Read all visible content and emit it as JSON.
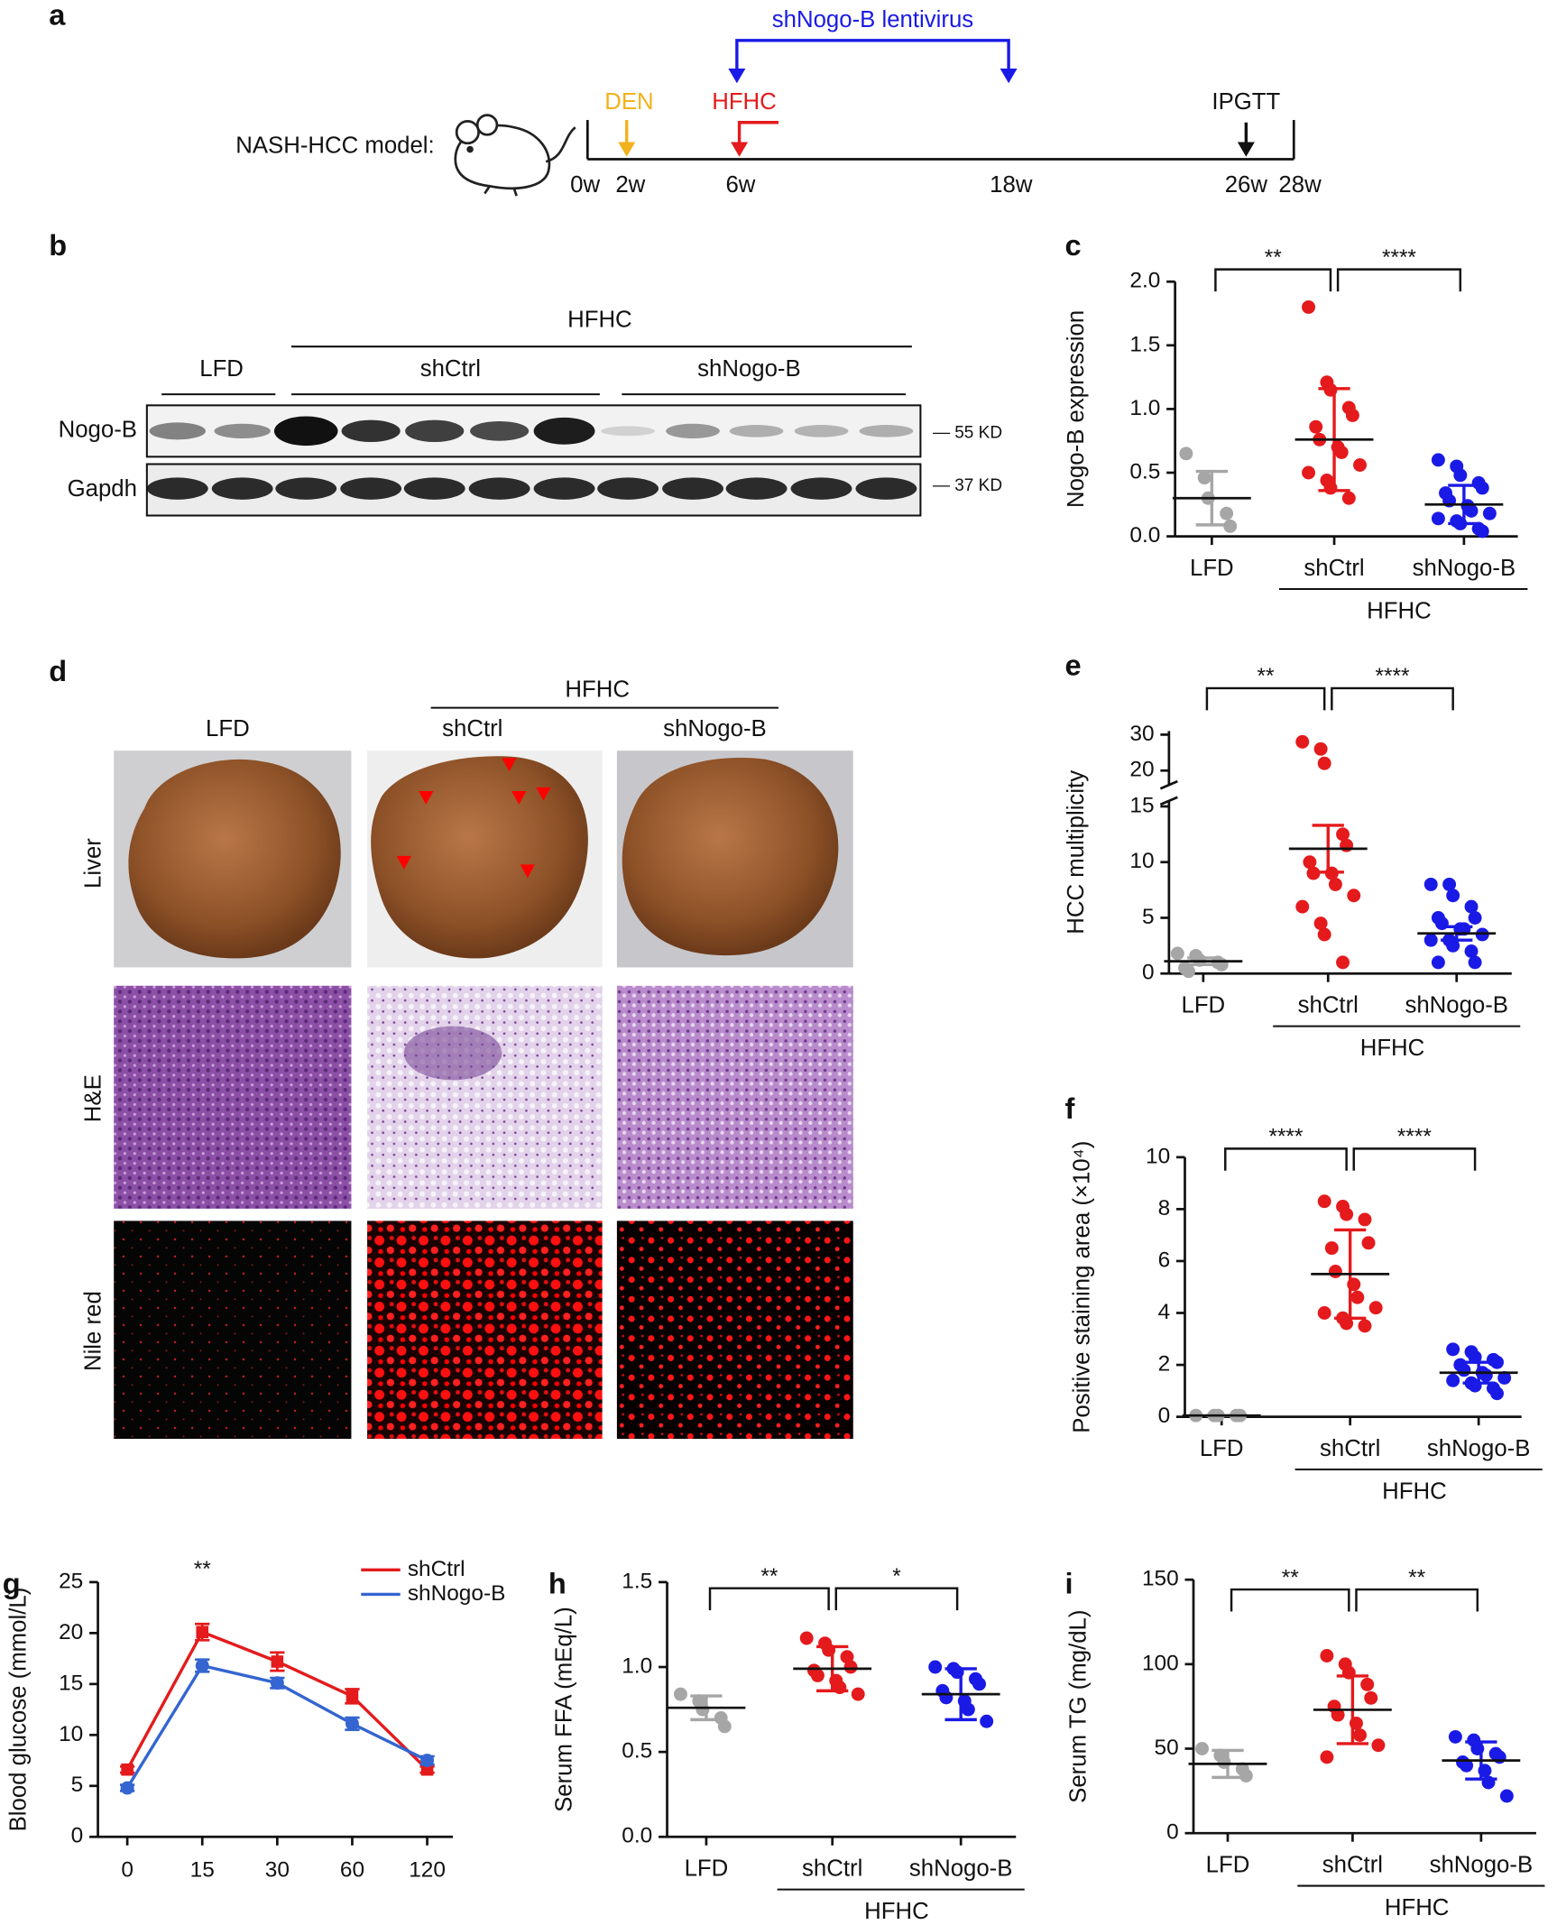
{
  "panel_a": {
    "letter": "a",
    "model_label": "NASH-HCC model:",
    "lentivirus": "shNogo-B lentivirus",
    "den": "DEN",
    "hfhc": "HFHC",
    "ipgtt": "IPGTT",
    "weeks": [
      "0w",
      "2w",
      "6w",
      "18w",
      "26w",
      "28w"
    ]
  },
  "panel_b": {
    "letter": "b",
    "group": "HFHC",
    "lane_groups": [
      "LFD",
      "shCtrl",
      "shNogo-B"
    ],
    "rows": [
      "Nogo-B",
      "Gapdh"
    ],
    "markers": [
      "— 55 KD",
      "— 37 KD"
    ]
  },
  "panel_d": {
    "letter": "d",
    "group": "HFHC",
    "columns": [
      "LFD",
      "shCtrl",
      "shNogo-B"
    ],
    "rows": [
      "Liver",
      "H&E",
      "Nile red"
    ]
  },
  "chart_data": [
    {
      "type": "strip",
      "letter": "c",
      "ylabel": "Nogo-B expression",
      "categories": [
        "LFD",
        "shCtrl",
        "shNogo-B"
      ],
      "group_label": "HFHC",
      "annotations": [
        "**",
        "****"
      ],
      "ylim": [
        0,
        2
      ],
      "yticks": [
        {
          "value": 0,
          "label": "0.0"
        },
        0.5,
        {
          "value": 1,
          "label": "1.0"
        },
        1.5,
        {
          "value": 2,
          "label": "2.0"
        }
      ],
      "groups": [
        {
          "color": "#a6a6a6",
          "points": [
            0.65,
            0.46,
            0.3,
            0.18,
            0.08
          ],
          "mean": 0.3,
          "error": 0.21
        },
        {
          "color": "#e41a1c",
          "points": [
            1.8,
            1.21,
            1.15,
            1.01,
            0.95,
            0.86,
            0.76,
            0.7,
            0.66,
            0.56,
            0.5,
            0.44,
            0.38,
            0.3
          ],
          "mean": 0.76,
          "error": 0.4
        },
        {
          "color": "#1a1ae6",
          "points": [
            0.6,
            0.55,
            0.48,
            0.42,
            0.38,
            0.34,
            0.28,
            0.24,
            0.2,
            0.18,
            0.14,
            0.12,
            0.1,
            0.06,
            0.04
          ],
          "mean": 0.25,
          "error": 0.15
        }
      ]
    },
    {
      "type": "strip",
      "letter": "e",
      "ylabel": "HCC multiplicity",
      "categories": [
        "LFD",
        "shCtrl",
        "shNogo-B"
      ],
      "group_label": "HFHC",
      "annotations": [
        "**",
        "****"
      ],
      "ylim": [
        0,
        15.5
      ],
      "yticks": [
        0,
        5,
        10,
        15
      ],
      "upper_ylim": [
        16,
        31
      ],
      "upper_yticks": [
        20,
        30
      ],
      "groups": [
        {
          "color": "#a6a6a6",
          "points": [
            1.8,
            1.6,
            1.2,
            1,
            0.8,
            0.5,
            0.2
          ],
          "mean": 1.1,
          "error": 0.3
        },
        {
          "color": "#e41a1c",
          "points": [
            28,
            26,
            22,
            12.5,
            11.5,
            10,
            9,
            9,
            8,
            7,
            6,
            4.5,
            3.5,
            1
          ],
          "mean": 11.2,
          "error": 2.1
        },
        {
          "color": "#1a1ae6",
          "points": [
            8,
            8,
            7,
            6,
            5,
            5,
            4.5,
            4,
            4,
            3.5,
            3,
            3,
            2.5,
            2,
            1,
            1
          ],
          "mean": 3.6,
          "error": 0.6
        }
      ]
    },
    {
      "type": "strip",
      "letter": "f",
      "ylabel": "Positive staining area (×10⁴)",
      "categories": [
        "LFD",
        "shCtrl",
        "shNogo-B"
      ],
      "group_label": "HFHC",
      "annotations": [
        "****",
        "****"
      ],
      "ylim": [
        0,
        10
      ],
      "yticks": [
        0,
        2,
        4,
        6,
        8,
        10
      ],
      "groups": [
        {
          "color": "#a6a6a6",
          "points": [
            0.05,
            0.05,
            0.05,
            0.05,
            0.05
          ],
          "mean": 0.05,
          "error": 0
        },
        {
          "color": "#e41a1c",
          "points": [
            8.3,
            8.1,
            7.8,
            7.6,
            6.7,
            6.5,
            5.6,
            5.1,
            4.6,
            4.2,
            4,
            3.8,
            3.6,
            3.5
          ],
          "mean": 5.5,
          "error": 1.7
        },
        {
          "color": "#1a1ae6",
          "points": [
            2.6,
            2.5,
            2.3,
            2.2,
            2.1,
            2,
            1.8,
            1.7,
            1.6,
            1.5,
            1.4,
            1.3,
            1.2,
            1.1,
            0.9
          ],
          "mean": 1.7,
          "error": 0.4
        }
      ]
    },
    {
      "type": "line",
      "letter": "g",
      "ylabel": "Blood glucose (mmol/L)",
      "categories": [
        "0",
        "15",
        "30",
        "60",
        "120"
      ],
      "ylim": [
        0,
        25
      ],
      "yticks": [
        0,
        5,
        10,
        15,
        20,
        25
      ],
      "annotations": [
        {
          "text": "**",
          "category": "15"
        }
      ],
      "series": [
        {
          "name": "shCtrl",
          "color": "#e41a1c",
          "marker": "square",
          "values": [
            6.6,
            20.1,
            17.2,
            13.8,
            6.6
          ],
          "errors": [
            0.3,
            0.8,
            0.9,
            0.7,
            0.3
          ]
        },
        {
          "name": "shNogo-B",
          "color": "#3465d0",
          "marker": "circle",
          "values": [
            4.8,
            16.8,
            15.1,
            11.1,
            7.5
          ],
          "errors": [
            0.3,
            0.6,
            0.5,
            0.6,
            0.4
          ]
        }
      ]
    },
    {
      "type": "strip",
      "letter": "h",
      "ylabel": "Serum FFA (mEq/L)",
      "categories": [
        "LFD",
        "shCtrl",
        "shNogo-B"
      ],
      "group_label": "HFHC",
      "annotations": [
        "**",
        "*"
      ],
      "ylim": [
        0,
        1.5
      ],
      "yticks": [
        {
          "value": 0,
          "label": "0.0"
        },
        0.5,
        {
          "value": 1,
          "label": "1.0"
        },
        1.5
      ],
      "groups": [
        {
          "color": "#a6a6a6",
          "points": [
            0.84,
            0.8,
            0.75,
            0.7,
            0.65
          ],
          "mean": 0.76,
          "error": 0.07
        },
        {
          "color": "#e41a1c",
          "points": [
            1.17,
            1.14,
            1.1,
            1.06,
            1.0,
            0.98,
            0.95,
            0.92,
            0.88,
            0.84
          ],
          "mean": 0.99,
          "error": 0.13
        },
        {
          "color": "#1a1ae6",
          "points": [
            1.0,
            0.99,
            0.97,
            0.93,
            0.9,
            0.86,
            0.82,
            0.8,
            0.75,
            0.68
          ],
          "mean": 0.84,
          "error": 0.15
        }
      ]
    },
    {
      "type": "strip",
      "letter": "i",
      "ylabel": "Serum TG (mg/dL)",
      "categories": [
        "LFD",
        "shCtrl",
        "shNogo-B"
      ],
      "group_label": "HFHC",
      "annotations": [
        "**",
        "**"
      ],
      "ylim": [
        0,
        150
      ],
      "yticks": [
        0,
        50,
        100,
        150
      ],
      "groups": [
        {
          "color": "#a6a6a6",
          "points": [
            50,
            46,
            42,
            38,
            34
          ],
          "mean": 41,
          "error": 8
        },
        {
          "color": "#e41a1c",
          "points": [
            105,
            100,
            95,
            88,
            80,
            75,
            70,
            65,
            58,
            52,
            45
          ],
          "mean": 73,
          "error": 20
        },
        {
          "color": "#1a1ae6",
          "points": [
            57,
            55,
            50,
            47,
            45,
            42,
            40,
            37,
            30,
            22
          ],
          "mean": 43,
          "error": 11
        }
      ]
    }
  ]
}
